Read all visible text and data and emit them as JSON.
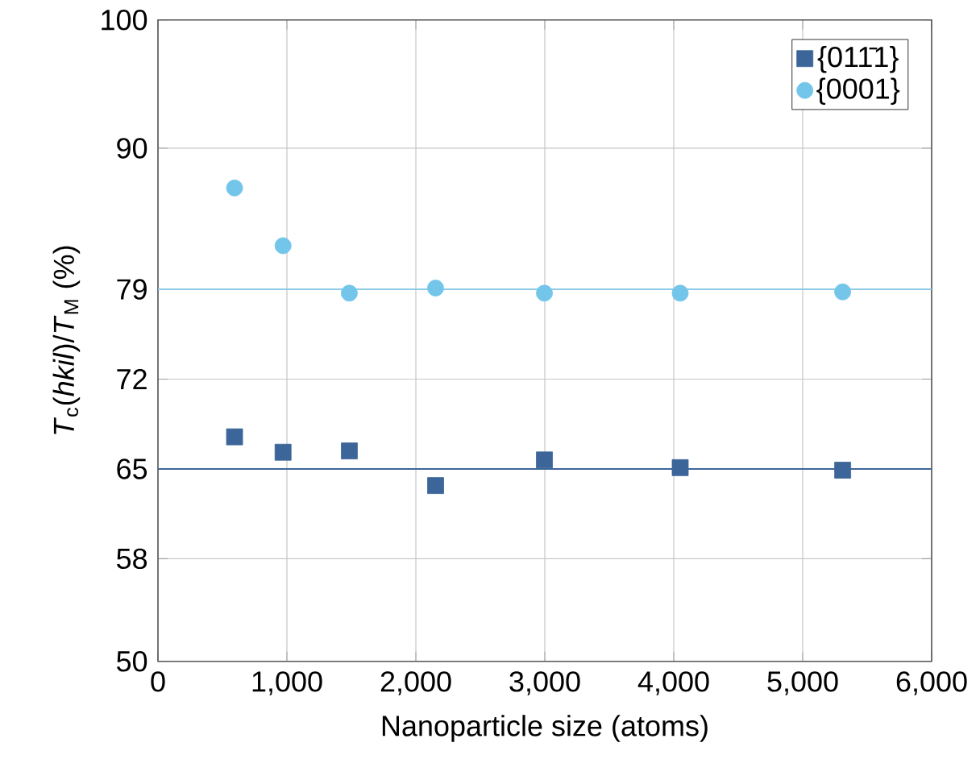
{
  "chart_data": {
    "type": "scatter",
    "xlabel": "Nanoparticle size (atoms)",
    "ylabel": "*T*$_{c}$(*hkil*)/*T*$_{M}$ (%)",
    "xlim": [
      0,
      6000
    ],
    "ylim": [
      50,
      100
    ],
    "xticks": [
      0,
      {
        "value": 1000,
        "label": "1,000"
      },
      {
        "value": 2000,
        "label": "2,000"
      },
      {
        "value": 3000,
        "label": "3,000"
      },
      {
        "value": 4000,
        "label": "4,000"
      },
      {
        "value": 5000,
        "label": "5,000"
      },
      {
        "value": 6000,
        "label": "6,000"
      }
    ],
    "yticks": [
      50,
      58,
      65,
      72,
      79,
      90,
      100
    ],
    "grid": true,
    "legend": "top right",
    "series": [
      {
        "name": "{011̄1}",
        "color": "#3c6699",
        "marker": "square",
        "x": [
          594,
          970,
          1484,
          2153,
          2997,
          4050,
          5310
        ],
        "values": [
          67.5,
          66.3,
          66.4,
          63.7,
          65.7,
          65.1,
          64.9
        ]
      },
      {
        "name": "{0001}",
        "color": "#74c5ea",
        "marker": "circle",
        "x": [
          594,
          970,
          1484,
          2153,
          2997,
          4050,
          5310
        ],
        "values": [
          86.9,
          82.4,
          78.7,
          79.1,
          78.7,
          78.7,
          78.8
        ]
      }
    ],
    "ref_lines": [
      {
        "axis": "y",
        "value": 79,
        "color": "#8ccbe6"
      },
      {
        "axis": "y",
        "value": 65,
        "color": "#3c6699"
      }
    ]
  }
}
